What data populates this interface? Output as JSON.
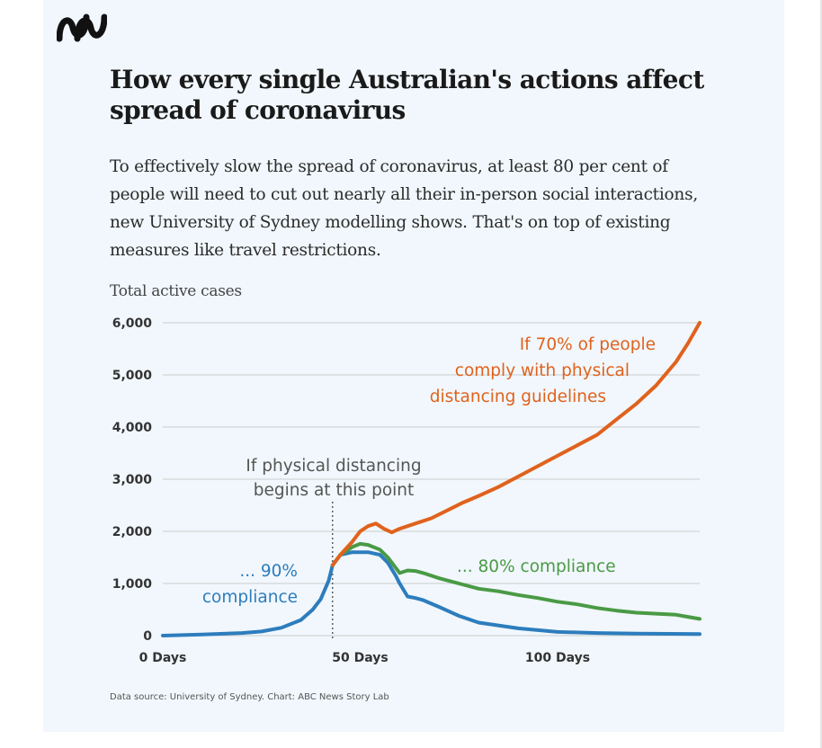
{
  "header": {
    "title": "How every single Australian's actions affect spread of coronavirus",
    "subtitle": "To effectively slow the spread of coronavirus, at least 80 per cent of people will need to cut out nearly all their in-person social interactions, new University of Sydney modelling shows. That's on top of existing measures like travel restrictions.",
    "source": "Data source: University of Sydney. Chart: ABC News Story Lab"
  },
  "colors": {
    "seventy": "#e0621d",
    "eighty": "#4a9a45",
    "ninety": "#2d7dbd",
    "grid": "#cccccc",
    "annotation_gray": "#555555"
  },
  "chart_data": {
    "type": "line",
    "title": "How every single Australian's actions affect spread of coronavirus",
    "ylabel": "Total active cases",
    "xlabel": "",
    "xlim": [
      0,
      136
    ],
    "ylim": [
      0,
      6000
    ],
    "y_ticks": [
      {
        "value": 0,
        "label": "0"
      },
      {
        "value": 1000,
        "label": "1,000"
      },
      {
        "value": 2000,
        "label": "2,000"
      },
      {
        "value": 3000,
        "label": "3,000"
      },
      {
        "value": 4000,
        "label": "4,000"
      },
      {
        "value": 5000,
        "label": "5,000"
      },
      {
        "value": 6000,
        "label": "6,000"
      }
    ],
    "x_ticks": [
      {
        "value": 0,
        "label": "0 Days"
      },
      {
        "value": 50,
        "label": "50 Days"
      },
      {
        "value": 100,
        "label": "100 Days"
      }
    ],
    "grid": "horizontal",
    "intervention_day": 43,
    "annotations": {
      "intervention": [
        "If physical distancing",
        "begins at this point"
      ],
      "seventy": [
        "If 70% of people",
        "comply with physical",
        "distancing guidelines"
      ],
      "eighty": [
        "... 80% compliance"
      ],
      "ninety": [
        "... 90%",
        "compliance"
      ]
    },
    "series": [
      {
        "key": "ninety",
        "x": [
          0,
          10,
          20,
          25,
          30,
          35,
          38,
          40,
          42,
          43,
          45,
          48,
          52,
          55,
          57,
          59,
          60,
          62,
          64,
          66,
          70,
          75,
          80,
          90,
          100,
          110,
          120,
          136
        ],
        "y": [
          0,
          20,
          50,
          80,
          150,
          300,
          500,
          700,
          1050,
          1350,
          1550,
          1600,
          1600,
          1550,
          1400,
          1150,
          1000,
          750,
          720,
          680,
          550,
          380,
          250,
          140,
          70,
          50,
          40,
          30
        ]
      },
      {
        "key": "eighty",
        "x": [
          43,
          45,
          48,
          50,
          52,
          55,
          57,
          59,
          60,
          62,
          64,
          66,
          70,
          75,
          80,
          85,
          90,
          95,
          100,
          105,
          110,
          115,
          120,
          125,
          130,
          133,
          136
        ],
        "y": [
          1350,
          1550,
          1700,
          1760,
          1740,
          1650,
          1500,
          1300,
          1200,
          1250,
          1240,
          1200,
          1100,
          1000,
          900,
          850,
          780,
          720,
          650,
          600,
          530,
          480,
          440,
          420,
          400,
          360,
          320
        ]
      },
      {
        "key": "seventy",
        "x": [
          43,
          45,
          48,
          50,
          52,
          54,
          56,
          58,
          60,
          62,
          64,
          68,
          72,
          76,
          80,
          85,
          90,
          95,
          100,
          105,
          110,
          115,
          120,
          125,
          130,
          133,
          136
        ],
        "y": [
          1350,
          1550,
          1800,
          2000,
          2100,
          2150,
          2050,
          1980,
          2050,
          2100,
          2150,
          2250,
          2400,
          2550,
          2680,
          2850,
          3050,
          3250,
          3450,
          3650,
          3850,
          4150,
          4450,
          4800,
          5250,
          5600,
          6000
        ]
      }
    ]
  }
}
